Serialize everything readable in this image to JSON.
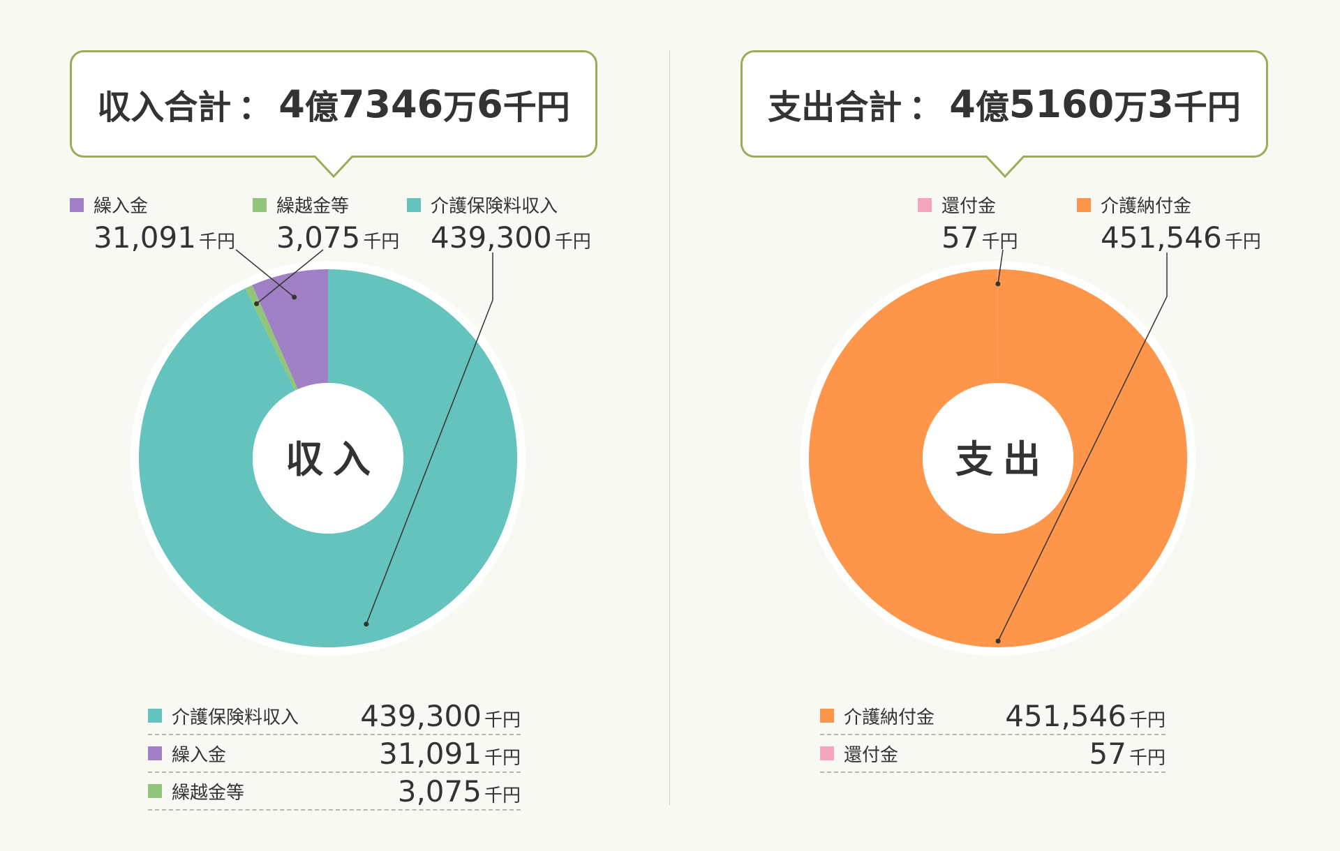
{
  "income": {
    "total_label": "収入合計",
    "total_sep": "：",
    "total_parts": [
      "4",
      "億",
      "7346",
      "万",
      "6",
      "千円"
    ],
    "center_label": "収入",
    "legend": [
      {
        "name": "繰入金",
        "value": "31,091",
        "unit": "千円",
        "color": "#a080c4"
      },
      {
        "name": "繰越金等",
        "value": "3,075",
        "unit": "千円",
        "color": "#92c57a"
      },
      {
        "name": "介護保険料収入",
        "value": "439,300",
        "unit": "千円",
        "color": "#64c3bd"
      }
    ],
    "table": [
      {
        "name": "介護保険料収入",
        "value": "439,300",
        "unit": "千円",
        "color": "#64c3bd"
      },
      {
        "name": "繰入金",
        "value": "31,091",
        "unit": "千円",
        "color": "#a080c4"
      },
      {
        "name": "繰越金等",
        "value": "3,075",
        "unit": "千円",
        "color": "#92c57a"
      }
    ]
  },
  "expense": {
    "total_label": "支出合計",
    "total_sep": "：",
    "total_parts": [
      "4",
      "億",
      "5160",
      "万",
      "3",
      "千円"
    ],
    "center_label": "支出",
    "legend": [
      {
        "name": "還付金",
        "value": "57",
        "unit": "千円",
        "color": "#f3a6bb"
      },
      {
        "name": "介護納付金",
        "value": "451,546",
        "unit": "千円",
        "color": "#fd964b"
      }
    ],
    "table": [
      {
        "name": "介護納付金",
        "value": "451,546",
        "unit": "千円",
        "color": "#fd964b"
      },
      {
        "name": "還付金",
        "value": "57",
        "unit": "千円",
        "color": "#f3a6bb"
      }
    ]
  },
  "chart_data": [
    {
      "type": "pie",
      "categories": [
        "介護保険料収入",
        "繰入金",
        "繰越金等"
      ],
      "values": [
        439300,
        31091,
        3075
      ],
      "colors": [
        "#64c3bd",
        "#a080c4",
        "#92c57a"
      ],
      "unit": "千円",
      "center_text": "収入"
    },
    {
      "type": "pie",
      "categories": [
        "介護納付金",
        "還付金"
      ],
      "values": [
        451546,
        57
      ],
      "colors": [
        "#fd964b",
        "#f3a6bb"
      ],
      "unit": "千円",
      "center_text": "支出"
    }
  ]
}
